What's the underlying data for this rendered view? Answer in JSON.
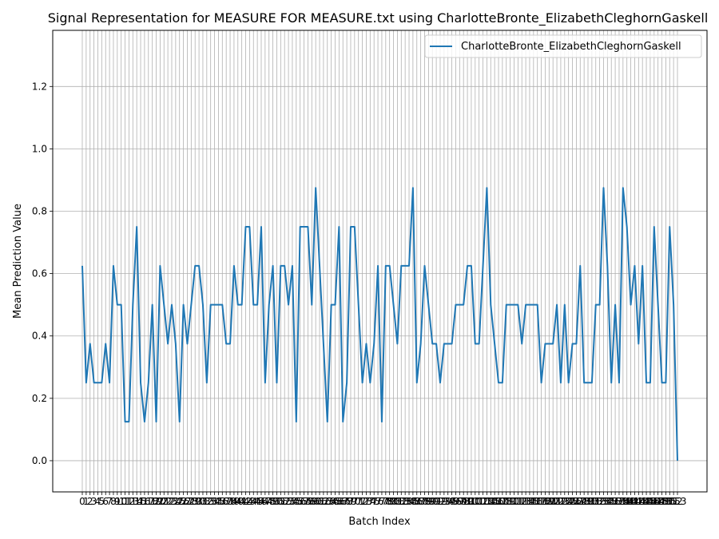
{
  "chart_data": {
    "type": "line",
    "title": "Signal Representation for MEASURE FOR MEASURE.txt using CharlotteBronte_ElizabethCleghornGaskell",
    "xlabel": "Batch Index",
    "ylabel": "Mean Prediction Value",
    "ylim": [
      -0.1,
      1.38
    ],
    "yticks": [
      "0.0",
      "0.2",
      "0.4",
      "0.6",
      "0.8",
      "1.0",
      "1.2"
    ],
    "grid": true,
    "legend_position": "top-right",
    "series": [
      {
        "name": "CharlotteBronte_ElizabethCleghornGaskell",
        "color": "#1f77b4",
        "x": [
          0,
          1,
          2,
          3,
          4,
          5,
          6,
          7,
          8,
          9,
          10,
          11,
          12,
          13,
          14,
          15,
          16,
          17,
          18,
          19,
          20,
          21,
          22,
          23,
          24,
          25,
          26,
          27,
          28,
          29,
          30,
          31,
          32,
          33,
          34,
          35,
          36,
          37,
          38,
          39,
          40,
          41,
          42,
          43,
          44,
          45,
          46,
          47,
          48,
          49,
          50,
          51,
          52,
          53,
          54,
          55,
          56,
          57,
          58,
          59,
          60,
          61,
          62,
          63,
          64,
          65,
          66,
          67,
          68,
          69,
          70,
          71,
          72,
          73,
          74,
          75,
          76,
          77,
          78,
          79,
          80,
          81,
          82,
          83,
          84,
          85,
          86,
          87,
          88,
          89,
          90,
          91,
          92,
          93,
          94,
          95,
          96,
          97,
          98,
          99,
          100,
          101,
          102,
          103,
          104,
          105,
          106,
          107,
          108,
          109,
          110,
          111,
          112,
          113,
          114,
          115,
          116,
          117,
          118,
          119,
          120,
          121,
          122,
          123,
          124,
          125,
          126,
          127,
          128,
          129,
          130,
          131,
          132,
          133,
          134,
          135,
          136,
          137,
          138,
          139,
          140,
          141,
          142,
          143,
          144,
          145,
          146,
          147,
          148,
          149,
          150,
          151,
          152,
          153
        ],
        "values": [
          0.625,
          0.25,
          0.375,
          0.25,
          0.25,
          0.25,
          0.375,
          0.25,
          0.625,
          0.5,
          0.5,
          0.125,
          0.125,
          0.5,
          0.75,
          0.25,
          0.125,
          0.25,
          0.5,
          0.125,
          0.625,
          0.5,
          0.375,
          0.5,
          0.375,
          0.125,
          0.5,
          0.375,
          0.5,
          0.625,
          0.625,
          0.5,
          0.25,
          0.5,
          0.5,
          0.5,
          0.5,
          0.375,
          0.375,
          0.625,
          0.5,
          0.5,
          0.75,
          0.75,
          0.5,
          0.5,
          0.75,
          0.25,
          0.5,
          0.625,
          0.25,
          0.625,
          0.625,
          0.5,
          0.625,
          0.125,
          0.75,
          0.75,
          0.75,
          0.5,
          0.875,
          0.625,
          0.375,
          0.125,
          0.5,
          0.5,
          0.75,
          0.125,
          0.25,
          0.75,
          0.75,
          0.5,
          0.25,
          0.375,
          0.25,
          0.375,
          0.625,
          0.125,
          0.625,
          0.625,
          0.5,
          0.375,
          0.625,
          0.625,
          0.625,
          0.875,
          0.25,
          0.375,
          0.625,
          0.5,
          0.375,
          0.375,
          0.25,
          0.375,
          0.375,
          0.375,
          0.5,
          0.5,
          0.5,
          0.625,
          0.625,
          0.375,
          0.375,
          0.625,
          0.875,
          0.5,
          0.375,
          0.25,
          0.25,
          0.5,
          0.5,
          0.5,
          0.5,
          0.375,
          0.5,
          0.5,
          0.5,
          0.5,
          0.25,
          0.375,
          0.375,
          0.375,
          0.5,
          0.25,
          0.5,
          0.25,
          0.375,
          0.375,
          0.625,
          0.25,
          0.25,
          0.25,
          0.5,
          0.5,
          0.875,
          0.625,
          0.25,
          0.5,
          0.25,
          0.875,
          0.75,
          0.5,
          0.625,
          0.375,
          0.625,
          0.25,
          0.25,
          0.75,
          0.5,
          0.25,
          0.25,
          0.75,
          0.5,
          0.0
        ]
      }
    ]
  }
}
